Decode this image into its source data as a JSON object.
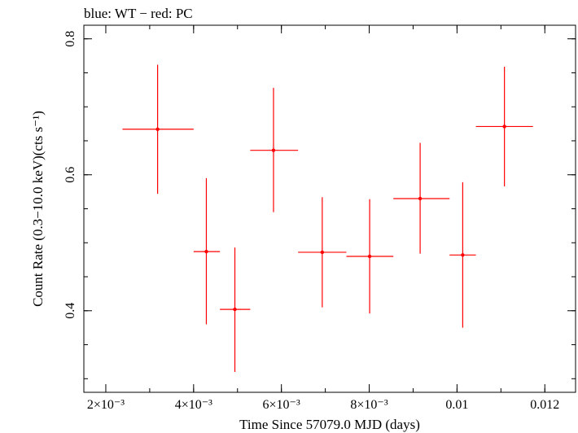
{
  "chart_data": {
    "type": "scatter",
    "title": "blue: WT − red: PC",
    "xlabel": "Time Since 57079.0 MJD (days)",
    "ylabel": "Count Rate (0.3−10.0 keV)(cts s⁻¹)",
    "xlim": [
      0.0015,
      0.0127
    ],
    "ylim": [
      0.28,
      0.82
    ],
    "grid": false,
    "x_ticks": [
      {
        "value": 0.002,
        "label": "2×10⁻³"
      },
      {
        "value": 0.004,
        "label": "4×10⁻³"
      },
      {
        "value": 0.006,
        "label": "6×10⁻³"
      },
      {
        "value": 0.008,
        "label": "8×10⁻³"
      },
      {
        "value": 0.01,
        "label": "0.01"
      },
      {
        "value": 0.012,
        "label": "0.012"
      }
    ],
    "y_ticks": [
      {
        "value": 0.4,
        "label": "0.4"
      },
      {
        "value": 0.6,
        "label": "0.6"
      },
      {
        "value": 0.8,
        "label": "0.8"
      }
    ],
    "series": [
      {
        "color": "#ff0000",
        "points": [
          {
            "x": 0.00318,
            "xlo": 0.00238,
            "xhi": 0.004,
            "y": 0.667,
            "ylo": 0.572,
            "yhi": 0.762
          },
          {
            "x": 0.00429,
            "xlo": 0.004,
            "xhi": 0.0046,
            "y": 0.487,
            "ylo": 0.38,
            "yhi": 0.595
          },
          {
            "x": 0.00494,
            "xlo": 0.0046,
            "xhi": 0.00529,
            "y": 0.402,
            "ylo": 0.31,
            "yhi": 0.493
          },
          {
            "x": 0.00582,
            "xlo": 0.00529,
            "xhi": 0.00638,
            "y": 0.636,
            "ylo": 0.545,
            "yhi": 0.728
          },
          {
            "x": 0.00693,
            "xlo": 0.00638,
            "xhi": 0.00748,
            "y": 0.486,
            "ylo": 0.405,
            "yhi": 0.567
          },
          {
            "x": 0.00801,
            "xlo": 0.00748,
            "xhi": 0.00855,
            "y": 0.48,
            "ylo": 0.396,
            "yhi": 0.564
          },
          {
            "x": 0.00916,
            "xlo": 0.00855,
            "xhi": 0.00983,
            "y": 0.565,
            "ylo": 0.484,
            "yhi": 0.647
          },
          {
            "x": 0.01013,
            "xlo": 0.00983,
            "xhi": 0.01043,
            "y": 0.482,
            "ylo": 0.375,
            "yhi": 0.589
          },
          {
            "x": 0.01108,
            "xlo": 0.01043,
            "xhi": 0.01173,
            "y": 0.671,
            "ylo": 0.583,
            "yhi": 0.759
          }
        ]
      }
    ]
  }
}
